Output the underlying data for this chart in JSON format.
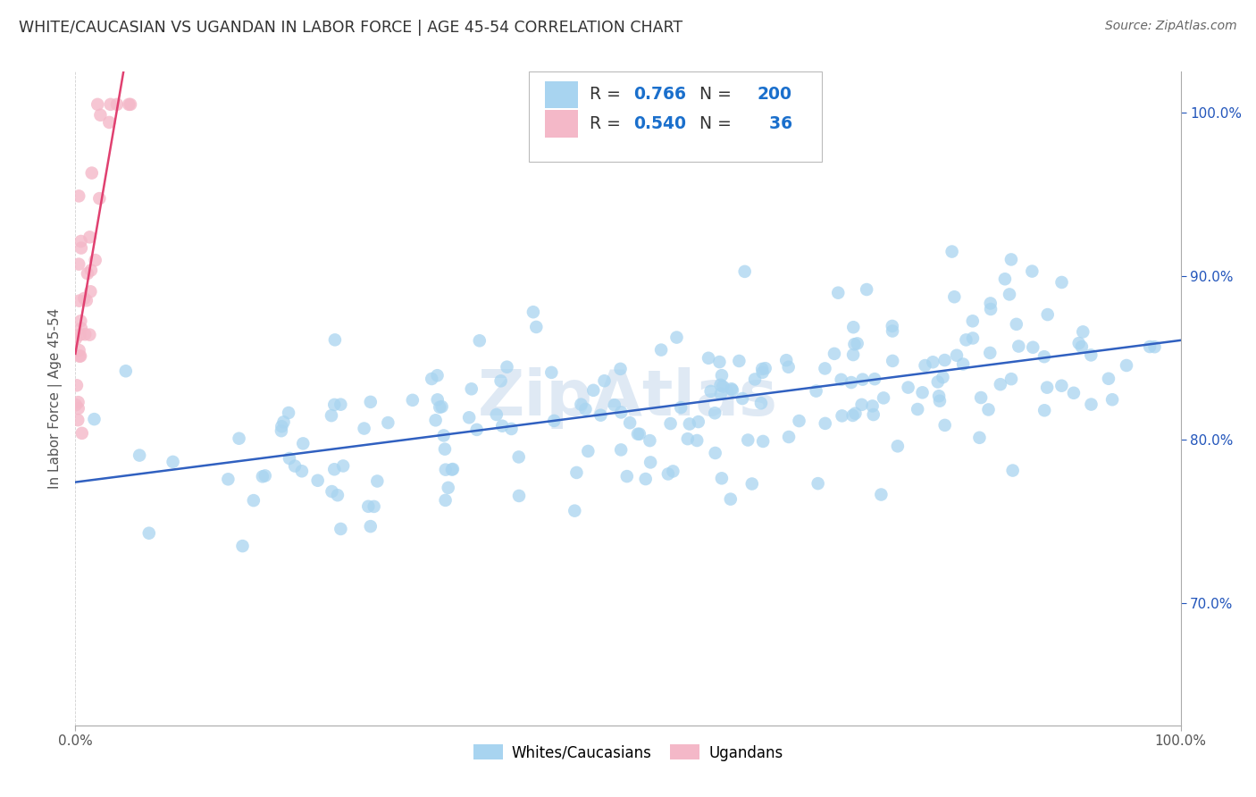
{
  "title": "WHITE/CAUCASIAN VS UGANDAN IN LABOR FORCE | AGE 45-54 CORRELATION CHART",
  "source": "Source: ZipAtlas.com",
  "ylabel": "In Labor Force | Age 45-54",
  "watermark": "ZipAtlas",
  "xmin": 0.0,
  "xmax": 1.0,
  "ymin": 0.625,
  "ymax": 1.025,
  "right_yticks": [
    0.7,
    0.8,
    0.9,
    1.0
  ],
  "right_yticklabels": [
    "70.0%",
    "80.0%",
    "90.0%",
    "100.0%"
  ],
  "xticks": [
    0.0,
    1.0
  ],
  "xticklabels": [
    "0.0%",
    "100.0%"
  ],
  "blue_R": 0.766,
  "blue_N": 200,
  "pink_R": 0.54,
  "pink_N": 36,
  "blue_color": "#a8d4f0",
  "pink_color": "#f4b8c8",
  "blue_line_color": "#3060c0",
  "pink_line_color": "#e04070",
  "legend_R_color": "#1a6fcc",
  "background_color": "#ffffff",
  "grid_color": "#cccccc",
  "title_color": "#333333"
}
